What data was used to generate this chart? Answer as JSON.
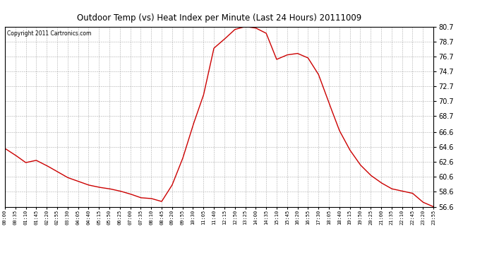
{
  "title": "Outdoor Temp (vs) Heat Index per Minute (Last 24 Hours) 20111009",
  "copyright": "Copyright 2011 Cartronics.com",
  "line_color": "#cc0000",
  "bg_color": "#ffffff",
  "plot_bg_color": "#ffffff",
  "grid_color": "#999999",
  "ylim": [
    56.6,
    80.7
  ],
  "yticks": [
    56.6,
    58.6,
    60.6,
    62.6,
    64.6,
    66.6,
    68.7,
    70.7,
    72.7,
    74.7,
    76.7,
    78.7,
    80.7
  ],
  "x_labels": [
    "00:00",
    "00:35",
    "01:10",
    "01:45",
    "02:20",
    "02:55",
    "03:30",
    "04:05",
    "04:40",
    "05:15",
    "05:50",
    "06:25",
    "07:00",
    "07:35",
    "08:10",
    "08:45",
    "09:20",
    "09:55",
    "10:30",
    "11:05",
    "11:40",
    "12:15",
    "12:50",
    "13:25",
    "14:00",
    "14:35",
    "15:10",
    "15:45",
    "16:20",
    "16:55",
    "17:30",
    "18:05",
    "18:40",
    "19:15",
    "19:50",
    "20:25",
    "21:00",
    "21:35",
    "22:10",
    "22:45",
    "23:20",
    "23:55"
  ],
  "data_y": [
    64.4,
    63.5,
    62.5,
    62.8,
    62.1,
    61.3,
    60.5,
    60.0,
    59.5,
    59.2,
    59.0,
    58.7,
    58.3,
    57.8,
    57.7,
    57.3,
    59.5,
    63.0,
    67.5,
    71.5,
    77.8,
    79.0,
    80.3,
    80.7,
    80.5,
    79.8,
    76.3,
    76.9,
    77.1,
    76.5,
    74.3,
    70.5,
    66.8,
    64.2,
    62.2,
    60.8,
    59.8,
    59.0,
    58.7,
    58.4,
    57.2,
    56.6
  ]
}
